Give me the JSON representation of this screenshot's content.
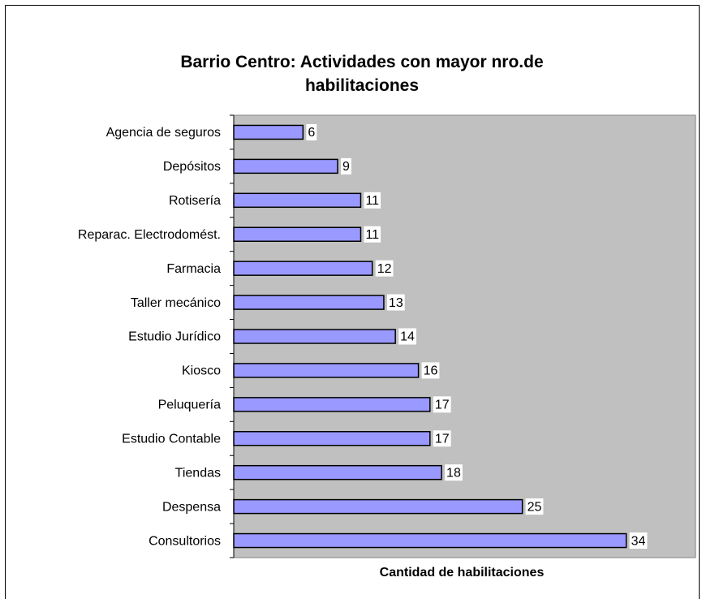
{
  "chart_data": {
    "type": "bar",
    "orientation": "horizontal",
    "title": "Barrio Centro: Actividades con mayor nro.de habilitaciones",
    "x_label": "Cantidad de habilitaciones",
    "categories": [
      "Agencia de seguros",
      "Depósitos",
      "Rotisería",
      "Reparac. Electrodomést.",
      "Farmacia",
      "Taller mecánico",
      "Estudio Jurídico",
      "Kiosco",
      "Peluquería",
      "Estudio Contable",
      "Tiendas",
      "Despensa",
      "Consultorios"
    ],
    "values": [
      6,
      9,
      11,
      11,
      12,
      13,
      14,
      16,
      17,
      17,
      18,
      25,
      34
    ],
    "color": "#9999ff",
    "plot_background": "#c0c0c0",
    "xlim": [
      0,
      40
    ]
  }
}
